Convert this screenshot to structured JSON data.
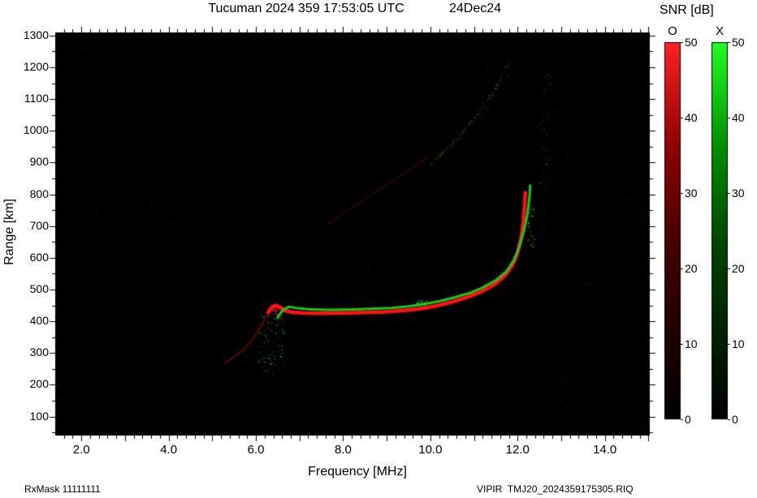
{
  "footer": {
    "rxmask": "RxMask 11111111",
    "file": "VIPIR  TMJ20_2024359175305.RIQ"
  },
  "chart_data": {
    "type": "heatmap",
    "title": "Tucuman 2024 359 17:53:05 UTC",
    "date_label": "24Dec24",
    "snr_title": "SNR [dB]",
    "xlabel": "Frequency [MHz]",
    "ylabel": "Range [km]",
    "xlim": [
      1.4,
      15.03
    ],
    "ylim": [
      40,
      1310
    ],
    "xtick_values": [
      2,
      4,
      6,
      8,
      10,
      12,
      14
    ],
    "xtick_labels": [
      "2.0",
      "4.0",
      "6.0",
      "8.0",
      "10.0",
      "12.0",
      "14.0"
    ],
    "ytick_values": [
      100,
      200,
      300,
      400,
      500,
      600,
      700,
      800,
      900,
      1000,
      1100,
      1200,
      1300
    ],
    "grid": false,
    "legend_position": "right",
    "colorbars": [
      {
        "label": "O",
        "min": 0,
        "max": 50,
        "ticks": [
          0,
          10,
          20,
          30,
          40,
          50
        ],
        "gradient": [
          "#000000",
          "#420000",
          "#8e0000",
          "#ff2222"
        ]
      },
      {
        "label": "X",
        "min": 0,
        "max": 50,
        "ticks": [
          0,
          10,
          20,
          30,
          40,
          50
        ],
        "gradient": [
          "#000000",
          "#004200",
          "#008e00",
          "#22ff22"
        ]
      }
    ],
    "traces": [
      {
        "name": "o-mode-lead",
        "color": "#c01010",
        "width": 2,
        "alpha": 0.45,
        "style": "line",
        "fuzz": 0.6,
        "points": [
          [
            5.3,
            268
          ],
          [
            5.5,
            288
          ],
          [
            5.72,
            312
          ],
          [
            5.92,
            342
          ],
          [
            6.08,
            375
          ],
          [
            6.2,
            405
          ],
          [
            6.28,
            428
          ]
        ]
      },
      {
        "name": "o-mode-main",
        "color": "#ff1212",
        "width": 4.5,
        "alpha": 1,
        "style": "line",
        "fuzz": 1.4,
        "points": [
          [
            6.28,
            428
          ],
          [
            6.36,
            444
          ],
          [
            6.46,
            450
          ],
          [
            6.56,
            444
          ],
          [
            6.66,
            434
          ],
          [
            6.82,
            429
          ],
          [
            7.1,
            426
          ],
          [
            7.5,
            425
          ],
          [
            8.0,
            426
          ],
          [
            8.5,
            428
          ],
          [
            9.0,
            430
          ],
          [
            9.4,
            434
          ],
          [
            9.8,
            440
          ],
          [
            10.15,
            449
          ],
          [
            10.5,
            461
          ],
          [
            10.85,
            476
          ],
          [
            11.15,
            492
          ],
          [
            11.45,
            514
          ],
          [
            11.7,
            542
          ],
          [
            11.88,
            576
          ],
          [
            12.0,
            616
          ],
          [
            12.08,
            662
          ],
          [
            12.13,
            712
          ],
          [
            12.16,
            766
          ],
          [
            12.18,
            805
          ]
        ]
      },
      {
        "name": "x-mode-main",
        "color": "#1dd31d",
        "width": 3,
        "alpha": 0.95,
        "style": "line",
        "fuzz": 1.1,
        "points": [
          [
            6.5,
            412
          ],
          [
            6.62,
            436
          ],
          [
            6.76,
            446
          ],
          [
            6.92,
            442
          ],
          [
            7.2,
            438
          ],
          [
            7.6,
            436
          ],
          [
            8.1,
            437
          ],
          [
            8.6,
            439
          ],
          [
            9.1,
            442
          ],
          [
            9.5,
            447
          ],
          [
            9.85,
            454
          ],
          [
            10.2,
            463
          ],
          [
            10.55,
            475
          ],
          [
            10.9,
            489
          ],
          [
            11.2,
            506
          ],
          [
            11.5,
            529
          ],
          [
            11.75,
            558
          ],
          [
            11.92,
            594
          ],
          [
            12.04,
            636
          ],
          [
            12.14,
            684
          ],
          [
            12.22,
            734
          ],
          [
            12.27,
            788
          ],
          [
            12.29,
            828
          ]
        ]
      },
      {
        "name": "second-hop-x",
        "color": "#17c217",
        "width": 2,
        "alpha": 0.8,
        "style": "speckle",
        "density": 0.5,
        "points": [
          [
            10.0,
            895
          ],
          [
            10.25,
            928
          ],
          [
            10.5,
            962
          ],
          [
            10.75,
            1000
          ],
          [
            11.0,
            1042
          ],
          [
            11.25,
            1088
          ],
          [
            11.5,
            1138
          ],
          [
            11.8,
            1215
          ]
        ]
      },
      {
        "name": "second-hop-o",
        "color": "#cc1111",
        "width": 2,
        "alpha": 0.5,
        "style": "speckle",
        "density": 0.25,
        "points": [
          [
            10.05,
            902
          ],
          [
            10.35,
            940
          ],
          [
            10.65,
            980
          ],
          [
            10.95,
            1025
          ],
          [
            11.25,
            1075
          ],
          [
            11.55,
            1130
          ],
          [
            11.85,
            1205
          ]
        ]
      },
      {
        "name": "interference-slant",
        "color": "#b01010",
        "width": 1.3,
        "alpha": 0.3,
        "style": "line",
        "fuzz": 0.4,
        "points": [
          [
            7.65,
            708
          ],
          [
            8.2,
            758
          ],
          [
            8.8,
            812
          ],
          [
            9.4,
            866
          ],
          [
            9.95,
            918
          ]
        ]
      },
      {
        "name": "near-range-echo",
        "color": "#aa1010",
        "width": 2,
        "alpha": 0.35,
        "style": "speckle",
        "density": 0.4,
        "points": [
          [
            2.9,
            96
          ],
          [
            3.3,
            103
          ],
          [
            3.8,
            106
          ],
          [
            4.2,
            100
          ],
          [
            4.6,
            95
          ]
        ]
      }
    ],
    "noise": {
      "seed": 1234567,
      "red_points": 12000,
      "green_points": 4500,
      "stripe_freqs": [
        2.35,
        2.9,
        3.4,
        3.75,
        4.15,
        4.6,
        5.05,
        5.5,
        5.95,
        6.2,
        6.55,
        7.0,
        7.45,
        7.9,
        8.5,
        9.15,
        9.65,
        10.15,
        10.7,
        11.2,
        11.75,
        12.3,
        12.65,
        13.1,
        13.55,
        14.05,
        14.5
      ],
      "clusters": [
        {
          "f": 6.35,
          "r": 330,
          "df": 0.3,
          "dr": 95,
          "n": 90,
          "color": "#15b015"
        },
        {
          "f": 9.78,
          "r": 455,
          "df": 0.13,
          "dr": 12,
          "n": 45,
          "color": "#22e022"
        },
        {
          "f": 6.45,
          "r": 437,
          "df": 0.1,
          "dr": 16,
          "n": 50,
          "color": "#ff1515"
        },
        {
          "f": 12.3,
          "r": 700,
          "df": 0.07,
          "dr": 70,
          "n": 30,
          "color": "#1ed41e"
        },
        {
          "f": 12.62,
          "r": 950,
          "df": 0.12,
          "dr": 260,
          "n": 40,
          "color": "#0f7a0f"
        }
      ]
    }
  }
}
